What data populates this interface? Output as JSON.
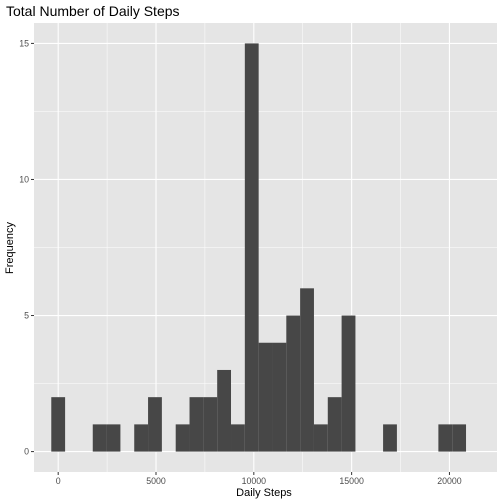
{
  "chart_data": {
    "type": "bar",
    "title": "Total Number of Daily Steps",
    "xlabel": "Daily Steps",
    "ylabel": "Frequency",
    "bin_width": 706.7,
    "xlim": [
      -1236.7,
      22430.7
    ],
    "ylim": [
      -0.75,
      15.75
    ],
    "x_ticks": [
      0,
      5000,
      10000,
      15000,
      20000
    ],
    "x_tick_labels": [
      "0",
      "5000",
      "10000",
      "15000",
      "20000"
    ],
    "y_ticks": [
      0,
      5,
      10,
      15
    ],
    "y_tick_labels": [
      "0",
      "5",
      "10",
      "15"
    ],
    "bins": [
      {
        "center": 0.0,
        "count": 2
      },
      {
        "center": 706.7,
        "count": 0
      },
      {
        "center": 1413.4,
        "count": 0
      },
      {
        "center": 2120.1,
        "count": 1
      },
      {
        "center": 2826.8,
        "count": 1
      },
      {
        "center": 3533.5,
        "count": 0
      },
      {
        "center": 4240.2,
        "count": 1
      },
      {
        "center": 4946.9,
        "count": 2
      },
      {
        "center": 5653.6,
        "count": 0
      },
      {
        "center": 6360.3,
        "count": 1
      },
      {
        "center": 7067.0,
        "count": 2
      },
      {
        "center": 7773.7,
        "count": 2
      },
      {
        "center": 8480.4,
        "count": 3
      },
      {
        "center": 9187.1,
        "count": 1
      },
      {
        "center": 9893.8,
        "count": 15
      },
      {
        "center": 10600.5,
        "count": 4
      },
      {
        "center": 11307.2,
        "count": 4
      },
      {
        "center": 12013.9,
        "count": 5
      },
      {
        "center": 12720.6,
        "count": 6
      },
      {
        "center": 13427.3,
        "count": 1
      },
      {
        "center": 14134.0,
        "count": 2
      },
      {
        "center": 14840.7,
        "count": 5
      },
      {
        "center": 15547.4,
        "count": 0
      },
      {
        "center": 16254.1,
        "count": 0
      },
      {
        "center": 16960.8,
        "count": 1
      },
      {
        "center": 17667.5,
        "count": 0
      },
      {
        "center": 18374.2,
        "count": 0
      },
      {
        "center": 19080.9,
        "count": 0
      },
      {
        "center": 19787.6,
        "count": 1
      },
      {
        "center": 20494.3,
        "count": 1
      }
    ],
    "grid": true,
    "colors": {
      "panel_background": "#e5e5e5",
      "grid_major": "#ffffff",
      "bar_fill": "#474747",
      "tick_label": "#4d4d4d",
      "tick_mark": "#333333"
    }
  }
}
